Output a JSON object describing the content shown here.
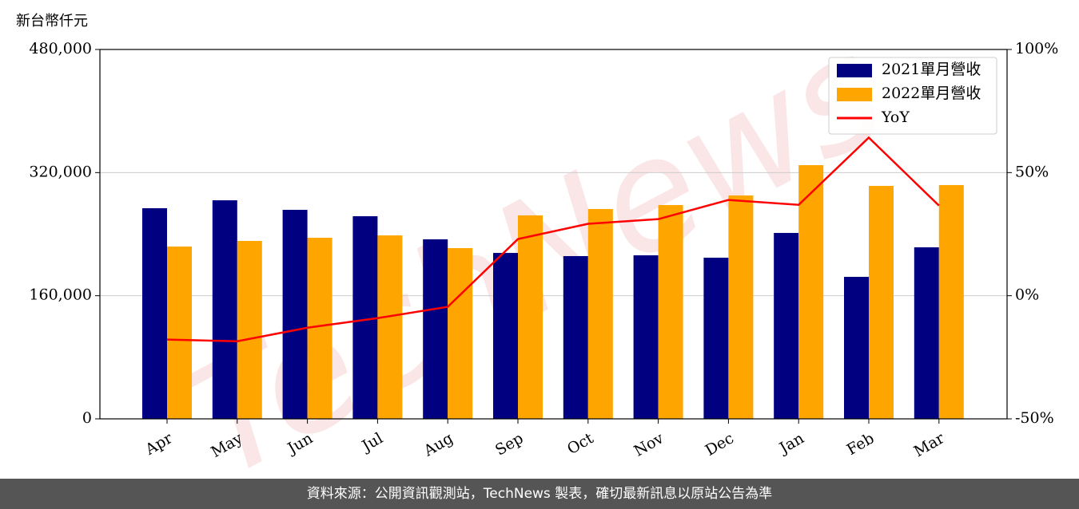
{
  "chart_data": {
    "type": "bar_line",
    "y_label": "新台幣仟元",
    "watermark": "TechNews",
    "categories": [
      "Apr",
      "May",
      "Jun",
      "Jul",
      "Aug",
      "Sep",
      "Oct",
      "Nov",
      "Dec",
      "Jan",
      "Feb",
      "Mar"
    ],
    "series": [
      {
        "name": "2021單月營收",
        "type": "bar",
        "color": "#000080",
        "values": [
          273700,
          284000,
          271600,
          263300,
          233300,
          215600,
          211500,
          212500,
          209400,
          241600,
          184500,
          222900
        ]
      },
      {
        "name": "2022單月營收",
        "type": "bar",
        "color": "#ffa500",
        "values": [
          223900,
          231200,
          235300,
          238400,
          221900,
          264400,
          272700,
          277800,
          290300,
          329700,
          302700,
          303800
        ]
      },
      {
        "name": "YoY",
        "type": "line",
        "axis": "y2",
        "color": "#ff0000",
        "values": [
          -17.8,
          -18.5,
          -13,
          -9.1,
          -4.5,
          23,
          29.2,
          31.1,
          38.9,
          36.9,
          64.2,
          36.6
        ]
      }
    ],
    "ylim": [
      0,
      480000
    ],
    "yticks": [
      0,
      {
        "value": 160000,
        "label": "160,000"
      },
      {
        "value": 320000,
        "label": "320,000"
      },
      {
        "value": 480000,
        "label": "480,000"
      }
    ],
    "y2lim": [
      -50,
      100
    ],
    "y2ticks": [
      {
        "value": -50,
        "label": "-50%"
      },
      {
        "value": 0,
        "label": "0%"
      },
      {
        "value": 50,
        "label": "50%"
      },
      {
        "value": 100,
        "label": "100%"
      }
    ],
    "grid": true,
    "legend": "upper right"
  },
  "footer": "資料來源：公開資訊觀測站，TechNews 製表，確切最新訊息以原站公告為準"
}
